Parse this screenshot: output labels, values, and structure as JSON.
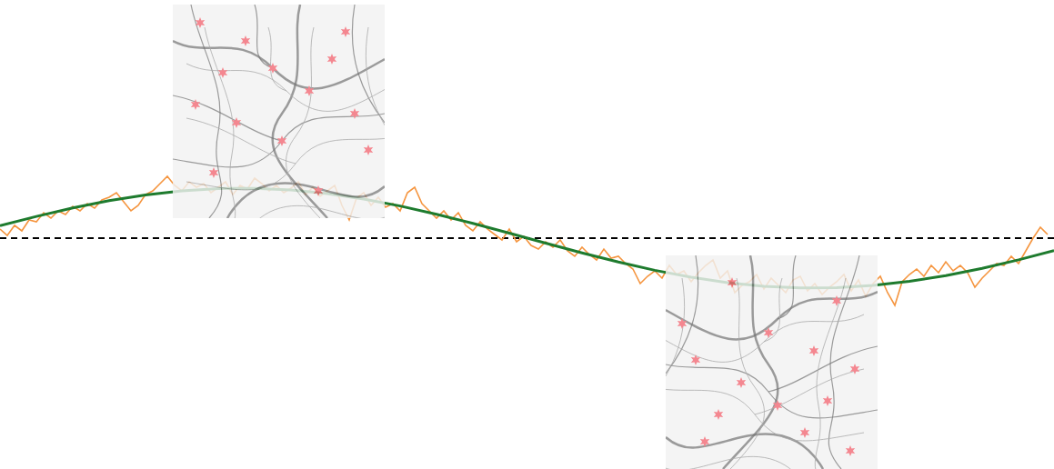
{
  "chart_data": {
    "type": "line",
    "tick_labels": false,
    "xlim": [
      0,
      1159
    ],
    "ylim": [
      -254,
      262
    ],
    "series": [
      {
        "x": [
          0,
          1159
        ],
        "values": [
          0,
          0
        ],
        "color": "#000000",
        "line_style": "dashed"
      },
      {
        "x": [
          0,
          8,
          16,
          24,
          32,
          40,
          48,
          56,
          64,
          72,
          80,
          88,
          96,
          104,
          112,
          120,
          128,
          136,
          144,
          152,
          160,
          168,
          176,
          184,
          192,
          200,
          208,
          216,
          224,
          232,
          240,
          248,
          256,
          264,
          272,
          280,
          288,
          296,
          304,
          312,
          320,
          328,
          336,
          344,
          352,
          360,
          368,
          376,
          384,
          392,
          400,
          408,
          416,
          424,
          432,
          440,
          448,
          456,
          464,
          472,
          480,
          488,
          496,
          504,
          512,
          520,
          528,
          536,
          544,
          552,
          560,
          568,
          576,
          584,
          592,
          600,
          608,
          616,
          624,
          632,
          640,
          648,
          656,
          664,
          672,
          680,
          688,
          696,
          704,
          712,
          720,
          728,
          736,
          744,
          752,
          760,
          768,
          776,
          784,
          792,
          800,
          808,
          816,
          824,
          832,
          840,
          848,
          856,
          864,
          872,
          880,
          888,
          896,
          904,
          912,
          920,
          928,
          936,
          944,
          952,
          960,
          968,
          976,
          984,
          992,
          1000,
          1008,
          1016,
          1024,
          1032,
          1040,
          1048,
          1056,
          1064,
          1072,
          1080,
          1088,
          1096,
          1104,
          1112,
          1120,
          1128,
          1136,
          1144,
          1152
        ],
        "values": [
          10,
          3,
          14,
          8,
          20,
          18,
          28,
          22,
          30,
          26,
          35,
          30,
          38,
          33,
          42,
          45,
          50,
          40,
          30,
          36,
          48,
          52,
          60,
          68,
          58,
          52,
          62,
          56,
          60,
          50,
          56,
          62,
          48,
          58,
          54,
          66,
          60,
          52,
          58,
          50,
          55,
          62,
          48,
          56,
          46,
          52,
          58,
          36,
          20,
          44,
          50,
          36,
          45,
          34,
          38,
          30,
          50,
          56,
          38,
          30,
          22,
          30,
          20,
          28,
          14,
          8,
          18,
          10,
          4,
          -2,
          10,
          -4,
          2,
          -8,
          -12,
          -4,
          -10,
          -2,
          -14,
          -20,
          -10,
          -18,
          -24,
          -12,
          -22,
          -20,
          -28,
          -34,
          -50,
          -42,
          -36,
          -44,
          -30,
          -40,
          -36,
          -48,
          -38,
          -30,
          -24,
          -44,
          -36,
          -60,
          -52,
          -48,
          -40,
          -56,
          -44,
          -52,
          -60,
          -46,
          -42,
          -58,
          -50,
          -62,
          -54,
          -48,
          -40,
          -58,
          -46,
          -64,
          -50,
          -42,
          -60,
          -74,
          -48,
          -40,
          -34,
          -42,
          -30,
          -38,
          -26,
          -36,
          -30,
          -38,
          -54,
          -44,
          -36,
          -28,
          -30,
          -20,
          -28,
          -14,
          0,
          12,
          4
        ],
        "color": "#f5953f",
        "line_style": "solid"
      },
      {
        "x": [
          0,
          40,
          80,
          120,
          160,
          200,
          240,
          280,
          320,
          360,
          400,
          440,
          480,
          520,
          560,
          600,
          640,
          680,
          720,
          760,
          800,
          840,
          880,
          920,
          960,
          1000,
          1040,
          1080,
          1120,
          1159
        ],
        "values": [
          13.6,
          23.9,
          33.2,
          41.3,
          47.6,
          52.1,
          54.6,
          54.8,
          53.0,
          49.0,
          43.0,
          35.4,
          26.3,
          16.2,
          5.5,
          -5.5,
          -16.2,
          -26.3,
          -35.4,
          -43.0,
          -49.0,
          -53.0,
          -54.8,
          -54.6,
          -52.1,
          -47.6,
          -41.3,
          -33.2,
          -23.9,
          -13.8
        ],
        "color": "#1e7b2e",
        "line_style": "solid"
      }
    ]
  }
}
